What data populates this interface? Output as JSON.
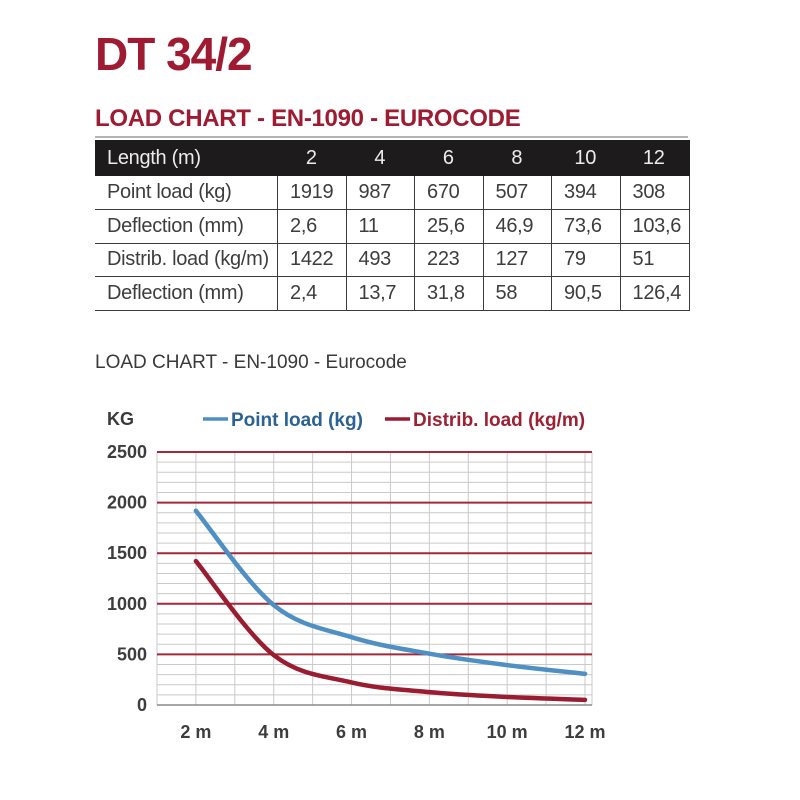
{
  "page": {
    "title": "DT 34/2",
    "heading": "LOAD CHART - EN-1090 - EUROCODE"
  },
  "table": {
    "header_label": "Length (m)",
    "lengths": [
      "2",
      "4",
      "6",
      "8",
      "10",
      "12"
    ],
    "rows": [
      {
        "label": "Point load (kg)",
        "values": [
          "1919",
          "987",
          "670",
          "507",
          "394",
          "308"
        ]
      },
      {
        "label": "Deflection (mm)",
        "values": [
          "2,6",
          "11",
          "25,6",
          "46,9",
          "73,6",
          "103,6"
        ]
      },
      {
        "label": "Distrib. load (kg/m)",
        "values": [
          "1422",
          "493",
          "223",
          "127",
          "79",
          "51"
        ]
      },
      {
        "label": "Deflection (mm)",
        "values": [
          "2,4",
          "13,7",
          "31,8",
          "58",
          "90,5",
          "126,4"
        ]
      }
    ]
  },
  "chart": {
    "subtitle": "LOAD CHART - EN-1090 - Eurocode",
    "y_axis_unit": "KG"
  },
  "chart_data": {
    "type": "line",
    "title": "LOAD CHART - EN-1090 - Eurocode",
    "x": [
      2,
      4,
      6,
      8,
      10,
      12
    ],
    "x_tick_labels": [
      "2 m",
      "4 m",
      "6 m",
      "8 m",
      "10 m",
      "12 m"
    ],
    "y_tick_labels": [
      "0",
      "500",
      "1000",
      "1500",
      "2000",
      "2500"
    ],
    "ylabel": "KG",
    "ylim": [
      0,
      2500
    ],
    "xlim": [
      1,
      12.18
    ],
    "y_major_step": 500,
    "y_minor_step": 100,
    "x_grid_step": 1,
    "grid": true,
    "legend_position": "top",
    "line_smoothing": true,
    "series": [
      {
        "name": "Point load (kg)",
        "line_color": "#4e8fc4",
        "text_color": "#2a6393",
        "values": [
          1919,
          987,
          670,
          507,
          394,
          308
        ]
      },
      {
        "name": "Distrib. load (kg/m)",
        "line_color": "#9a1c30",
        "text_color": "#9e2133",
        "values": [
          1422,
          493,
          223,
          127,
          79,
          51
        ]
      }
    ],
    "colors": {
      "minor_grid": "#cacaca",
      "major_grid": "#a0293a",
      "zero_axis": "#8a8a8a",
      "tick_label": "#3d3d3d"
    }
  }
}
